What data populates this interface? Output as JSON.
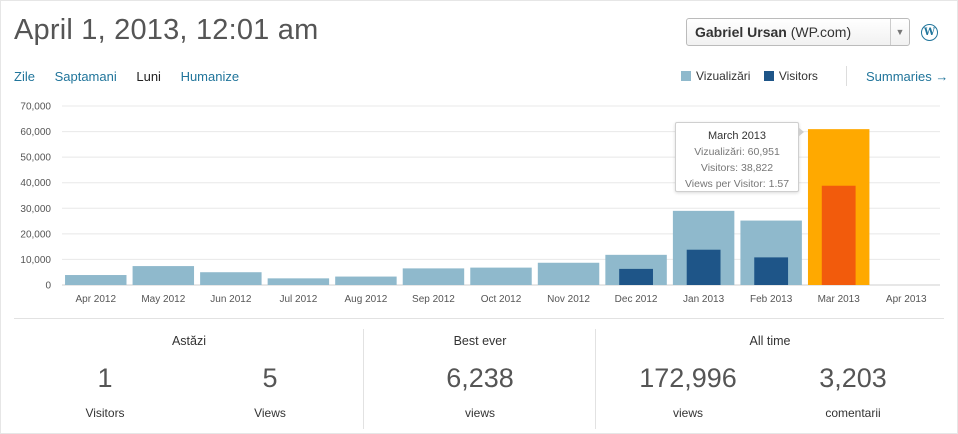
{
  "header": {
    "title": "April 1, 2013, 12:01 am",
    "site_name": "Gabriel Ursan",
    "site_suffix": "(WP.com)",
    "wp_glyph": "W"
  },
  "tabs": [
    {
      "label": "Zile",
      "active": false
    },
    {
      "label": "Saptamani",
      "active": false
    },
    {
      "label": "Luni",
      "active": true
    },
    {
      "label": "Humanize",
      "active": false
    }
  ],
  "legend": {
    "views_label": "Vizualizări",
    "visitors_label": "Visitors",
    "views_color": "#8fb9cc",
    "visitors_color": "#1e5588",
    "highlight_views_color": "#ffa900",
    "highlight_visitors_color": "#f25b0c"
  },
  "summaries_link": "Summaries →",
  "tooltip": {
    "title": "March 2013",
    "views": "Vizualizări: 60,951",
    "visitors": "Visitors: 38,822",
    "ratio": "Views per Visitor: 1.57"
  },
  "chart_data": {
    "type": "bar",
    "categories": [
      "Apr 2012",
      "May 2012",
      "Jun 2012",
      "Jul 2012",
      "Aug 2012",
      "Sep 2012",
      "Oct 2012",
      "Nov 2012",
      "Dec 2012",
      "Jan 2013",
      "Feb 2013",
      "Mar 2013",
      "Apr 2013"
    ],
    "series": [
      {
        "name": "Vizualizări",
        "values": [
          3900,
          7400,
          5000,
          2600,
          3300,
          6500,
          6800,
          8700,
          11800,
          29000,
          25200,
          60951,
          0
        ]
      },
      {
        "name": "Visitors",
        "values": [
          0,
          0,
          0,
          0,
          0,
          0,
          0,
          0,
          6300,
          13800,
          10800,
          38822,
          0
        ]
      }
    ],
    "yticks": [
      "0",
      "10,000",
      "20,000",
      "30,000",
      "40,000",
      "50,000",
      "60,000",
      "70,000"
    ],
    "ylim": [
      0,
      70000
    ],
    "highlight_index": 11,
    "grid": true
  },
  "stats": {
    "today": {
      "title": "Astăzi",
      "visitors_value": "1",
      "visitors_label": "Visitors",
      "views_value": "5",
      "views_label": "Views"
    },
    "best": {
      "title": "Best ever",
      "views_value": "6,238",
      "views_label": "views"
    },
    "alltime": {
      "title": "All time",
      "views_value": "172,996",
      "views_label": "views",
      "comments_value": "3,203",
      "comments_label": "comentarii"
    }
  }
}
